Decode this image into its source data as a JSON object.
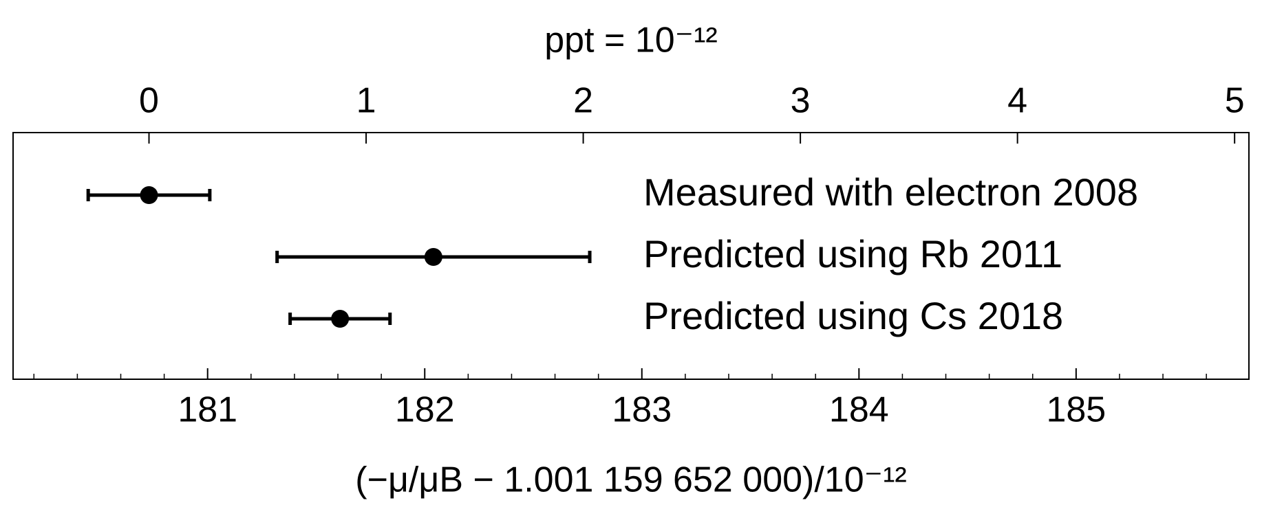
{
  "chart_data": {
    "type": "errorbar",
    "x_label": "(−μ/μB − 1.001 159 652 000)/10⁻¹²",
    "x2_label": "ppt = 10⁻¹²",
    "xlim": [
      180.104,
      185.796
    ],
    "xticks": [
      181,
      182,
      183,
      184,
      185
    ],
    "xminor_step": 0.2,
    "x2lim": [
      -0.626,
      5.066
    ],
    "x2ticks": [
      0,
      1,
      2,
      3,
      4,
      5
    ],
    "series": [
      {
        "name": "Measured with electron 2008",
        "color": "#000000",
        "values": [
          180.73
        ],
        "errors": [
          0.28
        ]
      },
      {
        "name": "Predicted using Rb 2011",
        "color": "#000000",
        "values": [
          182.04
        ],
        "errors": [
          0.72
        ]
      },
      {
        "name": "Predicted using Cs 2018",
        "color": "#000000",
        "values": [
          181.61
        ],
        "errors": [
          0.23
        ]
      }
    ]
  }
}
